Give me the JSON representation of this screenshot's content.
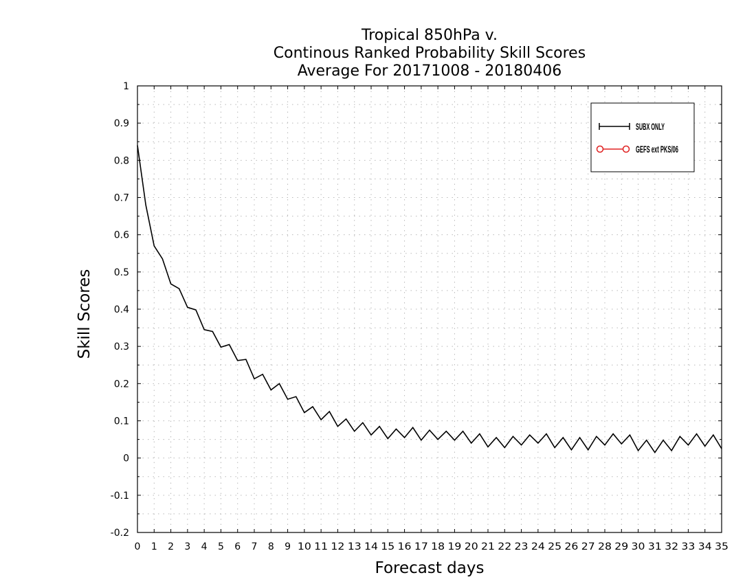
{
  "chart_data": {
    "type": "line",
    "title": [
      "Tropical 850hPa v.",
      "Continous Ranked Probability Skill Scores",
      "Average For 20171008 - 20180406"
    ],
    "xlabel": "Forecast days",
    "ylabel": "Skill Scores",
    "xlim": [
      0,
      35
    ],
    "ylim": [
      -0.2,
      1
    ],
    "xticks": [
      "0",
      "1",
      "2",
      "3",
      "4",
      "5",
      "6",
      "7",
      "8",
      "9",
      "10",
      "11",
      "12",
      "13",
      "14",
      "15",
      "16",
      "17",
      "18",
      "19",
      "20",
      "21",
      "22",
      "23",
      "24",
      "25",
      "26",
      "27",
      "28",
      "29",
      "30",
      "31",
      "32",
      "33",
      "34",
      "35"
    ],
    "yticks": [
      "-0.2",
      "-0.1",
      "0",
      "0.1",
      "0.2",
      "0.3",
      "0.4",
      "0.5",
      "0.6",
      "0.7",
      "0.8",
      "0.9",
      "1"
    ],
    "grid": true,
    "legend_position": "top-right",
    "series": [
      {
        "name": "SUBX ONLY",
        "color": "#000000",
        "marker": "plus",
        "x": [
          0,
          0.5,
          1,
          1.5,
          2,
          2.5,
          3,
          3.5,
          4,
          4.5,
          5,
          5.5,
          6,
          6.5,
          7,
          7.5,
          8,
          8.5,
          9,
          9.5,
          10,
          10.5,
          11,
          11.5,
          12,
          12.5,
          13,
          13.5,
          14,
          14.5,
          15,
          15.5,
          16,
          16.5,
          17,
          17.5,
          18,
          18.5,
          19,
          19.5,
          20,
          20.5,
          21,
          21.5,
          22,
          22.5,
          23,
          23.5,
          24,
          24.5,
          25,
          25.5,
          26,
          26.5,
          27,
          27.5,
          28,
          28.5,
          29,
          29.5,
          30,
          30.5,
          31,
          31.5,
          32,
          32.5,
          33,
          33.5,
          34,
          34.5,
          35
        ],
        "values": [
          0.84,
          0.68,
          0.57,
          0.535,
          0.468,
          0.455,
          0.405,
          0.398,
          0.345,
          0.34,
          0.298,
          0.305,
          0.262,
          0.265,
          0.213,
          0.225,
          0.183,
          0.2,
          0.158,
          0.165,
          0.122,
          0.138,
          0.103,
          0.125,
          0.085,
          0.105,
          0.072,
          0.095,
          0.062,
          0.085,
          0.052,
          0.078,
          0.055,
          0.082,
          0.048,
          0.075,
          0.05,
          0.072,
          0.048,
          0.072,
          0.04,
          0.065,
          0.03,
          0.055,
          0.028,
          0.058,
          0.035,
          0.062,
          0.04,
          0.065,
          0.028,
          0.055,
          0.022,
          0.055,
          0.022,
          0.058,
          0.035,
          0.065,
          0.038,
          0.062,
          0.02,
          0.048,
          0.015,
          0.048,
          0.02,
          0.058,
          0.035,
          0.065,
          0.032,
          0.062,
          0.025
        ]
      },
      {
        "name": "GEFS ext PKS/06",
        "color": "#e02020",
        "marker": "circle",
        "x": [],
        "values": []
      }
    ]
  }
}
